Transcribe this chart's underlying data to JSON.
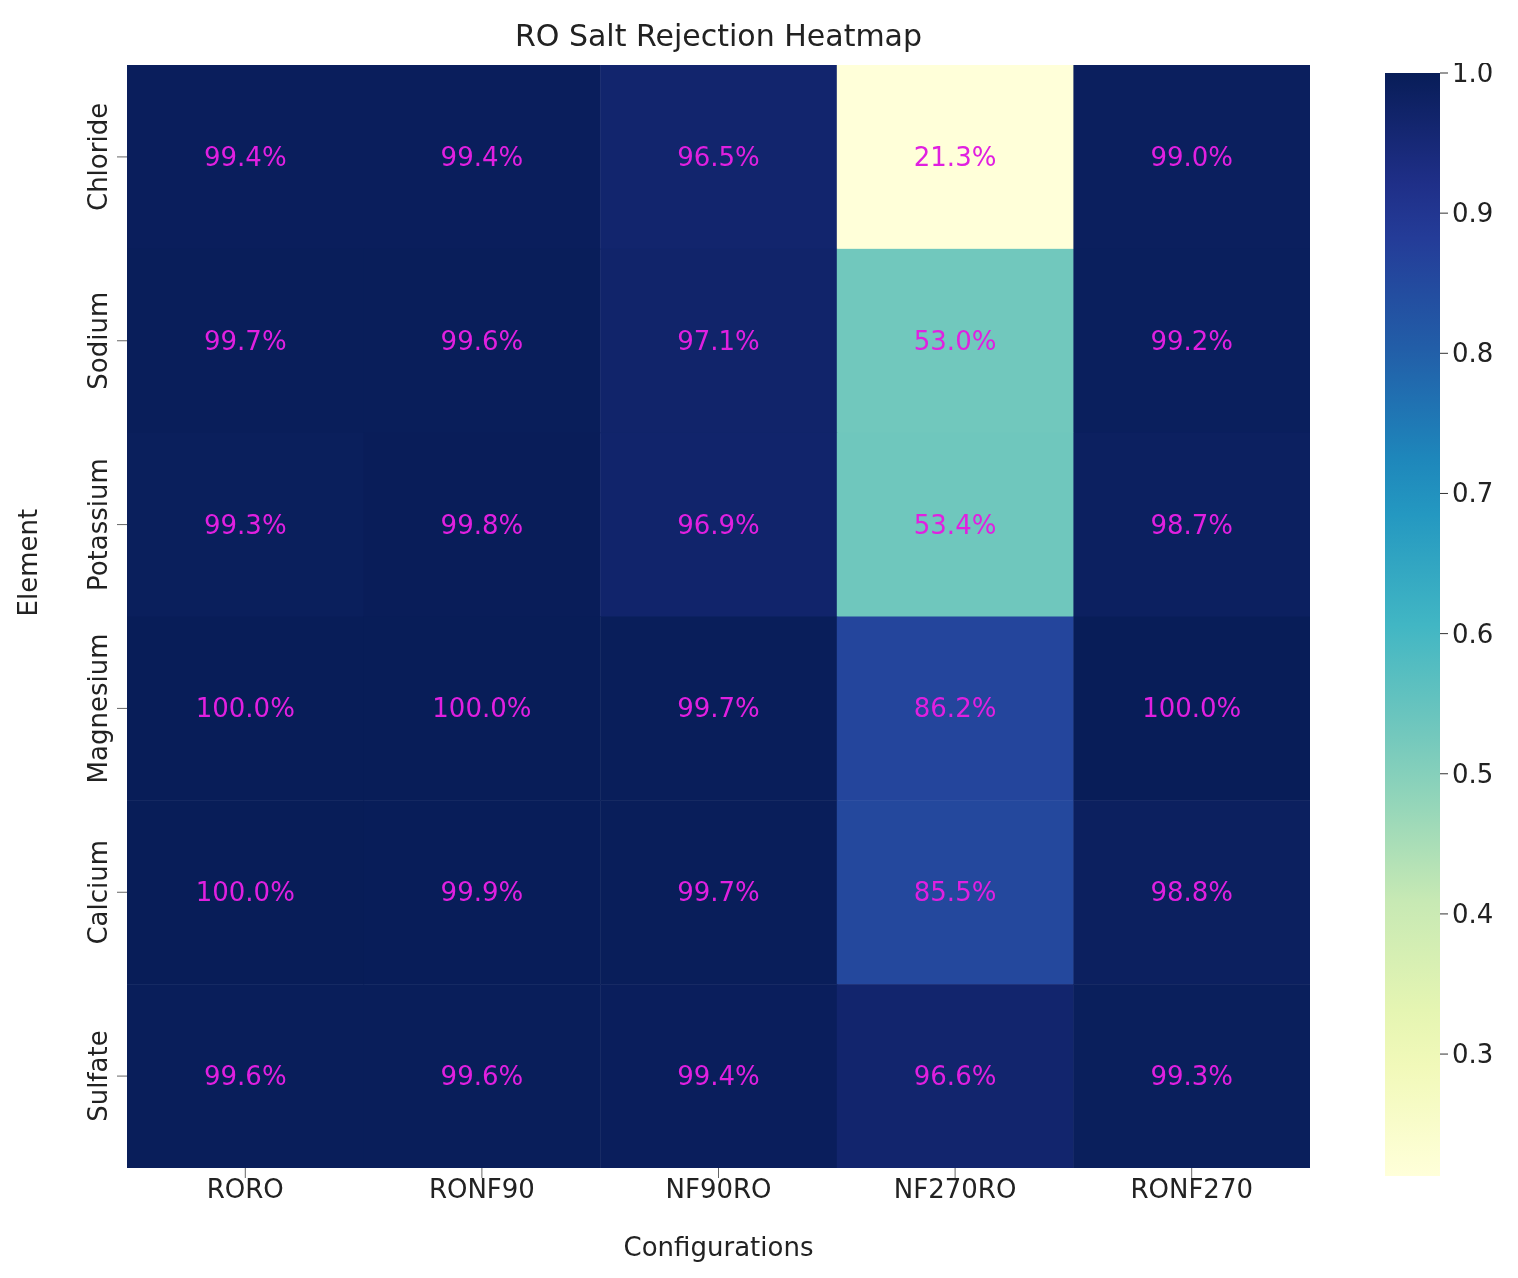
{
  "chart_data": {
    "type": "heatmap",
    "title": "RO Salt Rejection Heatmap",
    "xlabel": "Configurations",
    "ylabel": "Element",
    "categories": [
      "RORO",
      "RONF90",
      "NF90RO",
      "NF270RO",
      "RONF270"
    ],
    "y_categories": [
      "Chloride",
      "Sodium",
      "Potassium",
      "Magnesium",
      "Calcium",
      "Sulfate"
    ],
    "cells": [
      [
        0.994,
        0.994,
        0.965,
        0.213,
        0.99
      ],
      [
        0.997,
        0.996,
        0.971,
        0.53,
        0.992
      ],
      [
        0.993,
        0.998,
        0.969,
        0.534,
        0.987
      ],
      [
        1.0,
        1.0,
        0.997,
        0.862,
        1.0
      ],
      [
        1.0,
        0.999,
        0.997,
        0.855,
        0.988
      ],
      [
        0.996,
        0.996,
        0.994,
        0.966,
        0.993
      ]
    ],
    "cell_labels": [
      [
        "99.4%",
        "99.4%",
        "96.5%",
        "21.3%",
        "99.0%"
      ],
      [
        "99.7%",
        "99.6%",
        "97.1%",
        "53.0%",
        "99.2%"
      ],
      [
        "99.3%",
        "99.8%",
        "96.9%",
        "53.4%",
        "98.7%"
      ],
      [
        "100.0%",
        "100.0%",
        "99.7%",
        "86.2%",
        "100.0%"
      ],
      [
        "100.0%",
        "99.9%",
        "99.7%",
        "85.5%",
        "98.8%"
      ],
      [
        "99.6%",
        "99.6%",
        "99.4%",
        "96.6%",
        "99.3%"
      ]
    ],
    "clim": [
      0.213,
      1.0
    ],
    "cticks": [
      0.3,
      0.4,
      0.5,
      0.6,
      0.7,
      0.8,
      0.9,
      {
        "value": 1.0,
        "label": "1.0"
      }
    ]
  }
}
